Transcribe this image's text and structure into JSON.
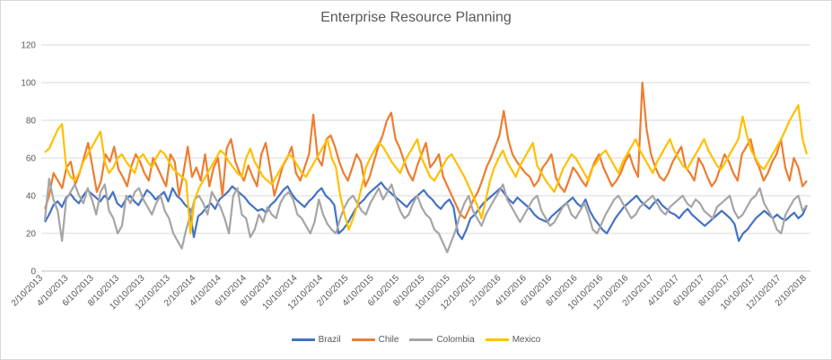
{
  "chart_data": {
    "type": "line",
    "title": "Enterprise Resource Planning",
    "xlabel": "",
    "ylabel": "",
    "ylim": [
      0,
      120
    ],
    "yticks": [
      0,
      20,
      40,
      60,
      80,
      100,
      120
    ],
    "grid": "horizontal",
    "legend_position": "bottom",
    "x_start": "2/10/2013",
    "x_end": "3/25/2018",
    "x_tick_labels": [
      "2/10/2013",
      "4/10/2013",
      "6/10/2013",
      "8/10/2013",
      "10/10/2013",
      "12/10/2013",
      "2/10/2014",
      "4/10/2014",
      "6/10/2014",
      "8/10/2014",
      "10/10/2014",
      "12/10/2014",
      "2/10/2015",
      "4/10/2015",
      "6/10/2015",
      "8/10/2015",
      "10/10/2015",
      "12/10/2015",
      "2/10/2016",
      "4/10/2016",
      "6/10/2016",
      "8/10/2016",
      "10/10/2016",
      "12/10/2016",
      "2/10/2017",
      "4/10/2017",
      "6/10/2017",
      "8/10/2017",
      "10/10/2017",
      "12/10/2017",
      "2/10/2018"
    ],
    "series": [
      {
        "name": "Brazil",
        "color": "#4472C4",
        "values": [
          26,
          30,
          35,
          37,
          34,
          39,
          41,
          38,
          36,
          40,
          43,
          41,
          39,
          37,
          40,
          38,
          42,
          36,
          34,
          38,
          40,
          37,
          35,
          39,
          43,
          41,
          38,
          40,
          42,
          37,
          44,
          40,
          38,
          35,
          33,
          18,
          29,
          31,
          34,
          36,
          33,
          38,
          40,
          42,
          45,
          43,
          41,
          39,
          36,
          34,
          32,
          33,
          31,
          35,
          37,
          40,
          43,
          45,
          41,
          38,
          36,
          34,
          37,
          39,
          42,
          44,
          40,
          38,
          35,
          20,
          22,
          25,
          29,
          33,
          36,
          38,
          41,
          43,
          45,
          47,
          44,
          42,
          40,
          38,
          36,
          34,
          37,
          39,
          41,
          43,
          40,
          38,
          35,
          33,
          36,
          38,
          34,
          20,
          17,
          22,
          28,
          30,
          33,
          36,
          38,
          40,
          42,
          44,
          41,
          38,
          36,
          39,
          37,
          35,
          33,
          30,
          28,
          27,
          26,
          29,
          31,
          33,
          35,
          37,
          39,
          36,
          34,
          38,
          32,
          28,
          25,
          22,
          20,
          24,
          28,
          31,
          34,
          36,
          38,
          40,
          37,
          35,
          33,
          36,
          38,
          35,
          33,
          31,
          30,
          28,
          31,
          33,
          30,
          28,
          26,
          24,
          26,
          28,
          30,
          32,
          30,
          28,
          25,
          16,
          20,
          22,
          25,
          28,
          30,
          32,
          30,
          28,
          30,
          28,
          27,
          29,
          31,
          28,
          30,
          35
        ]
      },
      {
        "name": "Chile",
        "color": "#ED7D31",
        "values": [
          33,
          40,
          52,
          48,
          44,
          55,
          58,
          46,
          52,
          60,
          68,
          55,
          42,
          48,
          62,
          58,
          66,
          54,
          50,
          45,
          56,
          62,
          58,
          52,
          48,
          60,
          55,
          50,
          45,
          62,
          58,
          40,
          52,
          66,
          50,
          55,
          48,
          62,
          45,
          55,
          60,
          40,
          65,
          70,
          58,
          52,
          48,
          56,
          50,
          45,
          62,
          68,
          55,
          40,
          48,
          56,
          60,
          66,
          52,
          48,
          55,
          62,
          83,
          60,
          56,
          70,
          72,
          66,
          58,
          52,
          48,
          55,
          62,
          58,
          45,
          50,
          58,
          66,
          72,
          80,
          84,
          70,
          65,
          58,
          52,
          48,
          56,
          62,
          68,
          55,
          58,
          62,
          50,
          45,
          40,
          35,
          30,
          28,
          33,
          38,
          42,
          48,
          55,
          60,
          66,
          72,
          85,
          70,
          62,
          58,
          55,
          52,
          50,
          45,
          48,
          55,
          58,
          62,
          50,
          45,
          42,
          48,
          55,
          52,
          48,
          45,
          52,
          58,
          62,
          55,
          50,
          45,
          48,
          52,
          58,
          62,
          55,
          50,
          100,
          75,
          62,
          55,
          50,
          48,
          52,
          58,
          62,
          66,
          55,
          52,
          48,
          60,
          56,
          50,
          45,
          48,
          55,
          62,
          58,
          52,
          48,
          62,
          66,
          70,
          60,
          55,
          48,
          52,
          58,
          62,
          70,
          55,
          48,
          60,
          55,
          45,
          48
        ]
      },
      {
        "name": "Colombia",
        "color": "#A5A5A5",
        "values": [
          27,
          49,
          38,
          32,
          16,
          38,
          42,
          46,
          40,
          36,
          44,
          38,
          30,
          42,
          46,
          32,
          28,
          20,
          24,
          40,
          36,
          42,
          44,
          38,
          34,
          30,
          36,
          40,
          32,
          28,
          20,
          16,
          12,
          22,
          30,
          38,
          40,
          36,
          30,
          42,
          38,
          34,
          28,
          20,
          40,
          44,
          30,
          28,
          18,
          22,
          30,
          26,
          34,
          30,
          28,
          36,
          40,
          42,
          38,
          30,
          28,
          24,
          20,
          26,
          38,
          30,
          25,
          22,
          20,
          28,
          34,
          38,
          40,
          36,
          32,
          30,
          36,
          40,
          44,
          38,
          42,
          46,
          38,
          32,
          28,
          30,
          36,
          40,
          34,
          30,
          28,
          22,
          20,
          15,
          10,
          16,
          22,
          30,
          36,
          40,
          32,
          28,
          24,
          30,
          34,
          38,
          42,
          46,
          38,
          34,
          30,
          26,
          30,
          34,
          38,
          40,
          32,
          28,
          24,
          26,
          30,
          34,
          36,
          30,
          28,
          32,
          36,
          30,
          22,
          20,
          25,
          30,
          34,
          38,
          40,
          36,
          32,
          28,
          30,
          34,
          36,
          38,
          40,
          36,
          32,
          30,
          34,
          36,
          38,
          40,
          36,
          34,
          38,
          36,
          32,
          30,
          28,
          34,
          36,
          38,
          40,
          32,
          28,
          30,
          34,
          38,
          40,
          44,
          36,
          32,
          28,
          22,
          20,
          30,
          34,
          38,
          40,
          32,
          35
        ]
      },
      {
        "name": "Mexico",
        "color": "#FFC000",
        "values": [
          63,
          65,
          70,
          75,
          78,
          55,
          50,
          48,
          52,
          58,
          62,
          66,
          70,
          74,
          58,
          52,
          55,
          60,
          62,
          58,
          55,
          52,
          60,
          62,
          58,
          55,
          60,
          64,
          62,
          58,
          54,
          52,
          50,
          48,
          20,
          38,
          44,
          48,
          52,
          56,
          60,
          64,
          62,
          58,
          55,
          52,
          50,
          60,
          65,
          58,
          54,
          50,
          48,
          46,
          50,
          54,
          58,
          62,
          60,
          56,
          52,
          50,
          54,
          58,
          62,
          66,
          70,
          60,
          55,
          40,
          30,
          22,
          28,
          35,
          45,
          55,
          60,
          64,
          68,
          66,
          62,
          58,
          55,
          52,
          58,
          62,
          66,
          70,
          60,
          55,
          50,
          48,
          52,
          56,
          60,
          62,
          58,
          54,
          50,
          45,
          40,
          35,
          28,
          38,
          48,
          55,
          60,
          64,
          58,
          54,
          50,
          56,
          60,
          64,
          68,
          56,
          52,
          48,
          45,
          42,
          48,
          54,
          58,
          62,
          60,
          56,
          52,
          48,
          55,
          58,
          62,
          64,
          60,
          56,
          52,
          58,
          62,
          66,
          70,
          64,
          60,
          56,
          52,
          58,
          62,
          66,
          70,
          64,
          60,
          56,
          54,
          58,
          62,
          66,
          70,
          64,
          60,
          56,
          54,
          58,
          62,
          66,
          70,
          82,
          72,
          64,
          60,
          56,
          54,
          58,
          62,
          66,
          70,
          75,
          80,
          84,
          88,
          70,
          62
        ]
      }
    ]
  }
}
